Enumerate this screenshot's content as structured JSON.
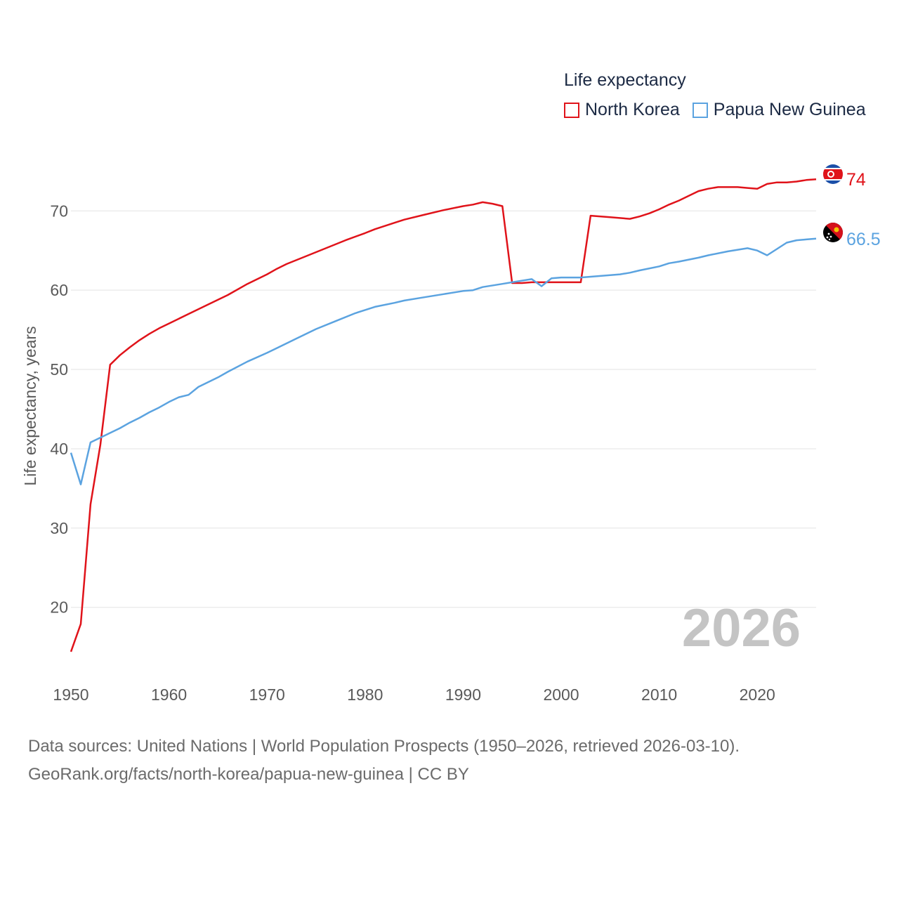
{
  "legend": {
    "title": "Life expectancy",
    "items": [
      {
        "label": "North Korea",
        "color": "#e0131a"
      },
      {
        "label": "Papua New Guinea",
        "color": "#5ba3e0"
      }
    ]
  },
  "year_label": "2026",
  "sources": {
    "line1": "Data sources: United Nations | World Population Prospects (1950–2026, retrieved 2026-03-10).",
    "line2": "GeoRank.org/facts/north-korea/papua-new-guinea | CC BY"
  },
  "chart_data": {
    "type": "line",
    "title": "Life expectancy",
    "xlabel": "",
    "ylabel": "Life expectancy, years",
    "xlim": [
      1950,
      2026
    ],
    "ylim": [
      12,
      78
    ],
    "x_ticks": [
      1950,
      1960,
      1970,
      1980,
      1990,
      2000,
      2010,
      2020
    ],
    "y_ticks": [
      20,
      30,
      40,
      50,
      60,
      70
    ],
    "grid": true,
    "series": [
      {
        "name": "North Korea",
        "color": "#e0131a",
        "end_label": "74",
        "flag": "north-korea-flag-icon",
        "points": [
          [
            1950,
            14.4
          ],
          [
            1951,
            17.9
          ],
          [
            1952,
            33
          ],
          [
            1953,
            40.5
          ],
          [
            1954,
            50.6
          ],
          [
            1955,
            51.8
          ],
          [
            1956,
            52.8
          ],
          [
            1957,
            53.7
          ],
          [
            1958,
            54.5
          ],
          [
            1959,
            55.2
          ],
          [
            1960,
            55.8
          ],
          [
            1962,
            57
          ],
          [
            1964,
            58.2
          ],
          [
            1966,
            59.4
          ],
          [
            1968,
            60.8
          ],
          [
            1970,
            62
          ],
          [
            1971,
            62.7
          ],
          [
            1972,
            63.3
          ],
          [
            1974,
            64.3
          ],
          [
            1976,
            65.3
          ],
          [
            1978,
            66.3
          ],
          [
            1980,
            67.2
          ],
          [
            1981,
            67.7
          ],
          [
            1983,
            68.5
          ],
          [
            1984,
            68.9
          ],
          [
            1986,
            69.5
          ],
          [
            1988,
            70.1
          ],
          [
            1990,
            70.6
          ],
          [
            1991,
            70.8
          ],
          [
            1992,
            71.1
          ],
          [
            1993,
            70.9
          ],
          [
            1994,
            70.6
          ],
          [
            1995,
            60.9
          ],
          [
            1996,
            60.9
          ],
          [
            1997,
            61
          ],
          [
            1998,
            61
          ],
          [
            2000,
            61
          ],
          [
            2002,
            61
          ],
          [
            2003,
            69.4
          ],
          [
            2005,
            69.2
          ],
          [
            2007,
            69
          ],
          [
            2008,
            69.3
          ],
          [
            2009,
            69.7
          ],
          [
            2010,
            70.2
          ],
          [
            2011,
            70.8
          ],
          [
            2012,
            71.3
          ],
          [
            2013,
            71.9
          ],
          [
            2014,
            72.5
          ],
          [
            2015,
            72.8
          ],
          [
            2016,
            73
          ],
          [
            2017,
            73
          ],
          [
            2018,
            73
          ],
          [
            2019,
            72.9
          ],
          [
            2020,
            72.8
          ],
          [
            2021,
            73.4
          ],
          [
            2022,
            73.6
          ],
          [
            2023,
            73.6
          ],
          [
            2024,
            73.7
          ],
          [
            2025,
            73.9
          ],
          [
            2026,
            74
          ]
        ]
      },
      {
        "name": "Papua New Guinea",
        "color": "#5ba3e0",
        "end_label": "66.5",
        "flag": "papua-new-guinea-flag-icon",
        "points": [
          [
            1950,
            39.5
          ],
          [
            1951,
            35.5
          ],
          [
            1952,
            40.8
          ],
          [
            1953,
            41.4
          ],
          [
            1954,
            42
          ],
          [
            1955,
            42.6
          ],
          [
            1956,
            43.3
          ],
          [
            1957,
            43.9
          ],
          [
            1958,
            44.6
          ],
          [
            1959,
            45.2
          ],
          [
            1960,
            45.9
          ],
          [
            1961,
            46.5
          ],
          [
            1962,
            46.8
          ],
          [
            1963,
            47.8
          ],
          [
            1965,
            49
          ],
          [
            1966,
            49.7
          ],
          [
            1968,
            51
          ],
          [
            1970,
            52.1
          ],
          [
            1971,
            52.7
          ],
          [
            1973,
            53.9
          ],
          [
            1975,
            55.1
          ],
          [
            1977,
            56.1
          ],
          [
            1979,
            57.1
          ],
          [
            1981,
            57.9
          ],
          [
            1983,
            58.4
          ],
          [
            1984,
            58.7
          ],
          [
            1986,
            59.1
          ],
          [
            1988,
            59.5
          ],
          [
            1990,
            59.9
          ],
          [
            1991,
            60
          ],
          [
            1992,
            60.4
          ],
          [
            1994,
            60.8
          ],
          [
            1995,
            61
          ],
          [
            1997,
            61.4
          ],
          [
            1998,
            60.5
          ],
          [
            1999,
            61.5
          ],
          [
            2000,
            61.6
          ],
          [
            2002,
            61.6
          ],
          [
            2004,
            61.8
          ],
          [
            2006,
            62
          ],
          [
            2007,
            62.2
          ],
          [
            2008,
            62.5
          ],
          [
            2010,
            63
          ],
          [
            2011,
            63.4
          ],
          [
            2012,
            63.6
          ],
          [
            2014,
            64.1
          ],
          [
            2015,
            64.4
          ],
          [
            2017,
            64.9
          ],
          [
            2019,
            65.3
          ],
          [
            2020,
            65
          ],
          [
            2021,
            64.4
          ],
          [
            2022,
            65.2
          ],
          [
            2023,
            66
          ],
          [
            2024,
            66.3
          ],
          [
            2025,
            66.4
          ],
          [
            2026,
            66.5
          ]
        ]
      }
    ]
  }
}
